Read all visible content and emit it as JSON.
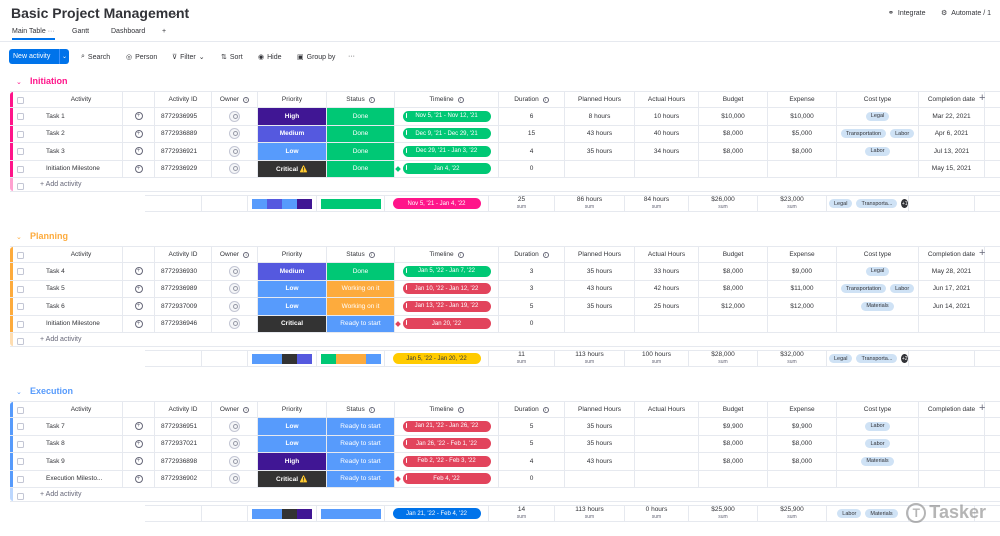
{
  "header": {
    "title": "Basic Project Management",
    "integrate": "Integrate",
    "automate": "Automate / 1"
  },
  "views": {
    "main_table": "Main Table",
    "gantt": "Gantt",
    "dashboard": "Dashboard",
    "add": "+"
  },
  "toolbar": {
    "new_activity": "New activity",
    "search": "Search",
    "person": "Person",
    "filter": "Filter",
    "sort": "Sort",
    "hide": "Hide",
    "group_by": "Group by",
    "more": "···"
  },
  "columns": {
    "activity": "Activity",
    "activity_id": "Activity ID",
    "owner": "Owner",
    "priority": "Priority",
    "status": "Status",
    "timeline": "Timeline",
    "duration": "Duration",
    "planned": "Planned Hours",
    "actual": "Actual Hours",
    "budget": "Budget",
    "expense": "Expense",
    "cost_type": "Cost type",
    "completion": "Completion date"
  },
  "add_activity": "+ Add activity",
  "sum_label": "sum",
  "colors": {
    "high": "#401694",
    "medium": "#5559df",
    "low": "#579bfc",
    "critical": "#333333",
    "done": "#00c875",
    "working": "#fdab3d",
    "ready": "#579bfc",
    "timeline_green": "#00c875",
    "timeline_red": "#e2445c",
    "timeline_pink": "#ff158a",
    "timeline_yellow": "#ffcb00",
    "timeline_blue": "#0073ea"
  },
  "groups": [
    {
      "name": "Initiation",
      "color": "#ff158a",
      "rows": [
        {
          "activity": "Task 1",
          "id": "8772936995",
          "priority": "High",
          "status": "Done",
          "timeline": "Nov 5, '21 - Nov 12, '21",
          "duration": "6",
          "planned": "8 hours",
          "actual": "10 hours",
          "budget": "$10,000",
          "expense": "$10,000",
          "cost": [
            "Legal"
          ],
          "completion": "Mar 22, 2021"
        },
        {
          "activity": "Task 2",
          "id": "8772936889",
          "priority": "Medium",
          "status": "Done",
          "timeline": "Dec 9, '21 - Dec 29, '21",
          "duration": "15",
          "planned": "43 hours",
          "actual": "40 hours",
          "budget": "$8,000",
          "expense": "$5,000",
          "cost": [
            "Transportation",
            "Labor"
          ],
          "completion": "Apr 6, 2021"
        },
        {
          "activity": "Task 3",
          "id": "8772936921",
          "priority": "Low",
          "status": "Done",
          "timeline": "Dec 29, '21 - Jan 3, '22",
          "duration": "4",
          "planned": "35 hours",
          "actual": "34 hours",
          "budget": "$8,000",
          "expense": "$8,000",
          "cost": [
            "Labor"
          ],
          "completion": "Jul 13, 2021"
        },
        {
          "activity": "Initiation Milestone",
          "id": "8772936929",
          "priority": "Critical ⚠️",
          "status": "Done",
          "timeline": "Jan 4, '22",
          "duration": "0",
          "planned": "",
          "actual": "",
          "budget": "",
          "expense": "",
          "cost": [],
          "completion": "May 15, 2021"
        }
      ],
      "summary": {
        "timeline": "Nov 5, '21 - Jan 4, '22",
        "duration": "25",
        "planned": "86 hours",
        "actual": "84 hours",
        "budget": "$26,000",
        "expense": "$23,000",
        "cost": [
          "Legal",
          "Transporta..."
        ],
        "more": "+1"
      }
    },
    {
      "name": "Planning",
      "color": "#fdab3d",
      "rows": [
        {
          "activity": "Task 4",
          "id": "8772936930",
          "priority": "Medium",
          "status": "Done",
          "timeline": "Jan 5, '22 - Jan 7, '22",
          "duration": "3",
          "planned": "35 hours",
          "actual": "33 hours",
          "budget": "$8,000",
          "expense": "$9,000",
          "cost": [
            "Legal"
          ],
          "completion": "May 28, 2021"
        },
        {
          "activity": "Task 5",
          "id": "8772936989",
          "priority": "Low",
          "status": "Working on it",
          "timeline": "Jan 10, '22 - Jan 12, '22",
          "duration": "3",
          "planned": "43 hours",
          "actual": "42 hours",
          "budget": "$8,000",
          "expense": "$11,000",
          "cost": [
            "Transportation",
            "Labor"
          ],
          "completion": "Jun 17, 2021"
        },
        {
          "activity": "Task 6",
          "id": "8772937009",
          "priority": "Low",
          "status": "Working on it",
          "timeline": "Jan 13, '22 - Jan 19, '22",
          "duration": "5",
          "planned": "35 hours",
          "actual": "25 hours",
          "budget": "$12,000",
          "expense": "$12,000",
          "cost": [
            "Materials"
          ],
          "completion": "Jun 14, 2021"
        },
        {
          "activity": "Initiation Milestone",
          "id": "8772936946",
          "priority": "Critical",
          "status": "Ready to start",
          "timeline": "Jan 20, '22",
          "duration": "0",
          "planned": "",
          "actual": "",
          "budget": "",
          "expense": "",
          "cost": [],
          "completion": ""
        }
      ],
      "summary": {
        "timeline": "Jan 5, '22 - Jan 20, '22",
        "duration": "11",
        "planned": "113 hours",
        "actual": "100 hours",
        "budget": "$28,000",
        "expense": "$32,000",
        "cost": [
          "Legal",
          "Transporta..."
        ],
        "more": "+2"
      }
    },
    {
      "name": "Execution",
      "color": "#579bfc",
      "rows": [
        {
          "activity": "Task 7",
          "id": "8772936951",
          "priority": "Low",
          "status": "Ready to start",
          "timeline": "Jan 21, '22 - Jan 26, '22",
          "duration": "5",
          "planned": "35 hours",
          "actual": "",
          "budget": "$9,900",
          "expense": "$9,900",
          "cost": [
            "Labor"
          ],
          "completion": ""
        },
        {
          "activity": "Task 8",
          "id": "8772937021",
          "priority": "Low",
          "status": "Ready to start",
          "timeline": "Jan 26, '22 - Feb 1, '22",
          "duration": "5",
          "planned": "35 hours",
          "actual": "",
          "budget": "$8,000",
          "expense": "$8,000",
          "cost": [
            "Labor"
          ],
          "completion": ""
        },
        {
          "activity": "Task 9",
          "id": "8772936898",
          "priority": "High",
          "status": "Ready to start",
          "timeline": "Feb 2, '22 - Feb 3, '22",
          "duration": "4",
          "planned": "43 hours",
          "actual": "",
          "budget": "$8,000",
          "expense": "$8,000",
          "cost": [
            "Materials"
          ],
          "completion": ""
        },
        {
          "activity": "Execution Milesto...",
          "id": "8772936902",
          "priority": "Critical ⚠️",
          "status": "Ready to start",
          "timeline": "Feb 4, '22",
          "duration": "0",
          "planned": "",
          "actual": "",
          "budget": "",
          "expense": "",
          "cost": [],
          "completion": ""
        }
      ],
      "summary": {
        "timeline": "Jan 21, '22 - Feb 4, '22",
        "duration": "14",
        "planned": "113 hours",
        "actual": "0 hours",
        "budget": "$25,900",
        "expense": "$25,900",
        "cost": [
          "Labor",
          "Materials"
        ],
        "more": ""
      }
    }
  ],
  "watermark": "Tasker"
}
